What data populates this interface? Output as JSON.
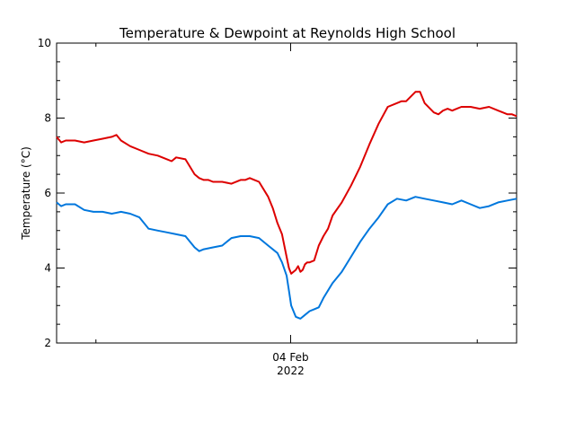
{
  "chart_data": {
    "type": "line",
    "title": "Temperature & Dewpoint at Reynolds High School",
    "xlabel": "",
    "ylabel": "Temperature (°C)",
    "ylim": [
      2,
      10
    ],
    "yticks": [
      2,
      4,
      6,
      8,
      10
    ],
    "xlim": [
      0,
      1
    ],
    "x_tick_label": {
      "line1": "04 Feb",
      "line2": "2022",
      "x": 0.5087
    },
    "grid": false,
    "legend": "none",
    "series": [
      {
        "color": "#dd0000",
        "x": [
          0,
          0.01,
          0.02,
          0.04,
          0.06,
          0.08,
          0.1,
          0.12,
          0.13,
          0.14,
          0.16,
          0.18,
          0.2,
          0.22,
          0.24,
          0.25,
          0.26,
          0.28,
          0.3,
          0.31,
          0.32,
          0.33,
          0.34,
          0.36,
          0.38,
          0.4,
          0.41,
          0.42,
          0.43,
          0.44,
          0.46,
          0.47,
          0.48,
          0.49,
          0.5,
          0.505,
          0.51,
          0.52,
          0.525,
          0.53,
          0.535,
          0.54,
          0.545,
          0.55,
          0.56,
          0.57,
          0.58,
          0.59,
          0.6,
          0.62,
          0.64,
          0.66,
          0.68,
          0.7,
          0.72,
          0.74,
          0.75,
          0.76,
          0.78,
          0.79,
          0.8,
          0.82,
          0.83,
          0.84,
          0.85,
          0.86,
          0.87,
          0.88,
          0.9,
          0.92,
          0.94,
          0.96,
          0.97,
          0.98,
          0.99,
          1.0
        ],
        "y": [
          7.5,
          7.35,
          7.4,
          7.4,
          7.35,
          7.4,
          7.45,
          7.5,
          7.55,
          7.4,
          7.25,
          7.15,
          7.05,
          7.0,
          6.9,
          6.85,
          6.95,
          6.9,
          6.5,
          6.4,
          6.35,
          6.35,
          6.3,
          6.3,
          6.25,
          6.35,
          6.35,
          6.4,
          6.35,
          6.3,
          5.9,
          5.6,
          5.2,
          4.9,
          4.3,
          4.0,
          3.85,
          3.95,
          4.05,
          3.9,
          3.95,
          4.1,
          4.15,
          4.15,
          4.2,
          4.6,
          4.85,
          5.05,
          5.4,
          5.75,
          6.2,
          6.7,
          7.3,
          7.85,
          8.3,
          8.4,
          8.45,
          8.45,
          8.7,
          8.7,
          8.4,
          8.15,
          8.1,
          8.2,
          8.25,
          8.2,
          8.25,
          8.3,
          8.3,
          8.25,
          8.3,
          8.2,
          8.15,
          8.1,
          8.1,
          8.05
        ]
      },
      {
        "color": "#0077dd",
        "x": [
          0,
          0.01,
          0.02,
          0.04,
          0.06,
          0.08,
          0.1,
          0.12,
          0.14,
          0.16,
          0.18,
          0.2,
          0.22,
          0.24,
          0.26,
          0.28,
          0.3,
          0.31,
          0.32,
          0.34,
          0.36,
          0.38,
          0.4,
          0.42,
          0.44,
          0.46,
          0.48,
          0.49,
          0.5,
          0.505,
          0.51,
          0.52,
          0.53,
          0.54,
          0.55,
          0.56,
          0.57,
          0.58,
          0.6,
          0.62,
          0.64,
          0.66,
          0.68,
          0.7,
          0.72,
          0.74,
          0.76,
          0.78,
          0.8,
          0.82,
          0.84,
          0.86,
          0.88,
          0.9,
          0.92,
          0.94,
          0.96,
          0.98,
          1.0
        ],
        "y": [
          5.75,
          5.65,
          5.7,
          5.7,
          5.55,
          5.5,
          5.5,
          5.45,
          5.5,
          5.45,
          5.35,
          5.05,
          5.0,
          4.95,
          4.9,
          4.85,
          4.55,
          4.45,
          4.5,
          4.55,
          4.6,
          4.8,
          4.85,
          4.85,
          4.8,
          4.6,
          4.4,
          4.15,
          3.8,
          3.4,
          3.0,
          2.7,
          2.65,
          2.75,
          2.85,
          2.9,
          2.95,
          3.2,
          3.6,
          3.9,
          4.3,
          4.7,
          5.05,
          5.35,
          5.7,
          5.85,
          5.8,
          5.9,
          5.85,
          5.8,
          5.75,
          5.7,
          5.8,
          5.7,
          5.6,
          5.65,
          5.75,
          5.8,
          5.85
        ]
      }
    ]
  }
}
